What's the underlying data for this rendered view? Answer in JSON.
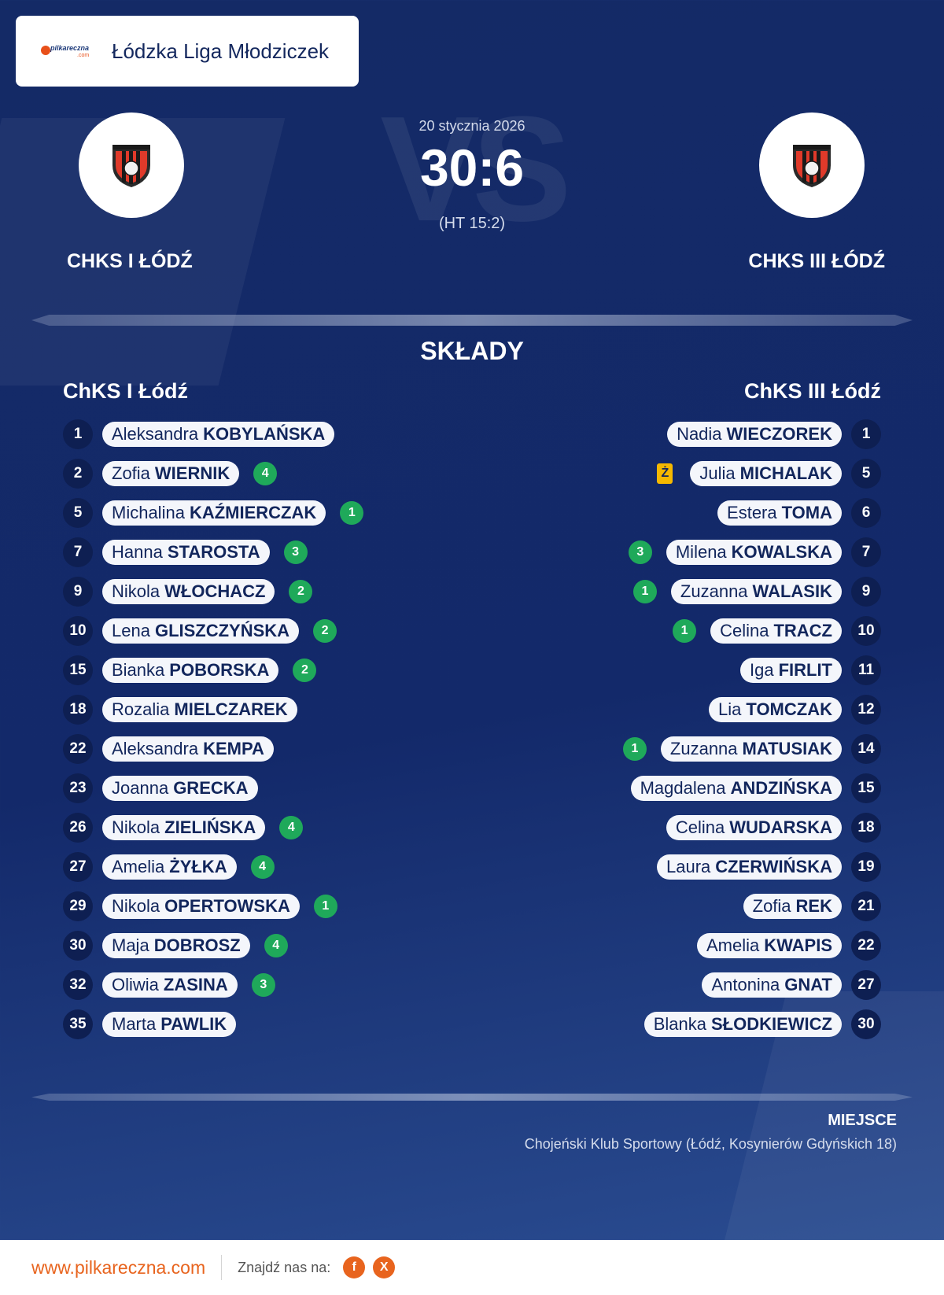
{
  "header": {
    "league": "Łódzka Liga Młodziczek",
    "logo_text": "pilkareczna",
    "logo_sub": ".com"
  },
  "match": {
    "date": "20 stycznia 2026",
    "score": "30:6",
    "halftime": "(HT 15:2)",
    "vs_text": "VS",
    "home_team": "CHKS I ŁÓDŹ",
    "away_team": "CHKS III ŁÓDŹ"
  },
  "lineups": {
    "title": "SKŁADY",
    "home_title": "ChKS I Łódź",
    "away_title": "ChKS III Łódź",
    "home": [
      {
        "number": "1",
        "first": "Aleksandra",
        "last": "KOBYLAŃSKA",
        "goals": ""
      },
      {
        "number": "2",
        "first": "Zofia",
        "last": "WIERNIK",
        "goals": "4"
      },
      {
        "number": "5",
        "first": "Michalina",
        "last": "KAŹMIERCZAK",
        "goals": "1"
      },
      {
        "number": "7",
        "first": "Hanna",
        "last": "STAROSTA",
        "goals": "3"
      },
      {
        "number": "9",
        "first": "Nikola",
        "last": "WŁOCHACZ",
        "goals": "2"
      },
      {
        "number": "10",
        "first": "Lena",
        "last": "GLISZCZYŃSKA",
        "goals": "2"
      },
      {
        "number": "15",
        "first": "Bianka",
        "last": "POBORSKA",
        "goals": "2"
      },
      {
        "number": "18",
        "first": "Rozalia",
        "last": "MIELCZAREK",
        "goals": ""
      },
      {
        "number": "22",
        "first": "Aleksandra",
        "last": "KEMPA",
        "goals": ""
      },
      {
        "number": "23",
        "first": "Joanna",
        "last": "GRECKA",
        "goals": ""
      },
      {
        "number": "26",
        "first": "Nikola",
        "last": "ZIELIŃSKA",
        "goals": "4"
      },
      {
        "number": "27",
        "first": "Amelia",
        "last": "ŻYŁKA",
        "goals": "4"
      },
      {
        "number": "29",
        "first": "Nikola",
        "last": "OPERTOWSKA",
        "goals": "1"
      },
      {
        "number": "30",
        "first": "Maja",
        "last": "DOBROSZ",
        "goals": "4"
      },
      {
        "number": "32",
        "first": "Oliwia",
        "last": "ZASINA",
        "goals": "3"
      },
      {
        "number": "35",
        "first": "Marta",
        "last": "PAWLIK",
        "goals": ""
      }
    ],
    "away": [
      {
        "number": "1",
        "first": "Nadia",
        "last": "WIECZOREK",
        "goals": "",
        "card": ""
      },
      {
        "number": "5",
        "first": "Julia",
        "last": "MICHALAK",
        "goals": "",
        "card": "Ż"
      },
      {
        "number": "6",
        "first": "Estera",
        "last": "TOMA",
        "goals": "",
        "card": ""
      },
      {
        "number": "7",
        "first": "Milena",
        "last": "KOWALSKA",
        "goals": "3",
        "card": ""
      },
      {
        "number": "9",
        "first": "Zuzanna",
        "last": "WALASIK",
        "goals": "1",
        "card": ""
      },
      {
        "number": "10",
        "first": "Celina",
        "last": "TRACZ",
        "goals": "1",
        "card": ""
      },
      {
        "number": "11",
        "first": "Iga",
        "last": "FIRLIT",
        "goals": "",
        "card": ""
      },
      {
        "number": "12",
        "first": "Lia",
        "last": "TOMCZAK",
        "goals": "",
        "card": ""
      },
      {
        "number": "14",
        "first": "Zuzanna",
        "last": "MATUSIAK",
        "goals": "1",
        "card": ""
      },
      {
        "number": "15",
        "first": "Magdalena",
        "last": "ANDZIŃSKA",
        "goals": "",
        "card": ""
      },
      {
        "number": "18",
        "first": "Celina",
        "last": "WUDARSKA",
        "goals": "",
        "card": ""
      },
      {
        "number": "19",
        "first": "Laura",
        "last": "CZERWIŃSKA",
        "goals": "",
        "card": ""
      },
      {
        "number": "21",
        "first": "Zofia",
        "last": "REK",
        "goals": "",
        "card": ""
      },
      {
        "number": "22",
        "first": "Amelia",
        "last": "KWAPIS",
        "goals": "",
        "card": ""
      },
      {
        "number": "27",
        "first": "Antonina",
        "last": "GNAT",
        "goals": "",
        "card": ""
      },
      {
        "number": "30",
        "first": "Blanka",
        "last": "SŁODKIEWICZ",
        "goals": "",
        "card": ""
      }
    ]
  },
  "venue": {
    "label": "MIEJSCE",
    "value": "Chojeński Klub Sportowy (Łódź, Kosynierów Gdyńskich 18)"
  },
  "footer": {
    "site": "www.pilkareczna.com",
    "find_us": "Znajdź nas na:",
    "facebook": "f",
    "x": "X"
  },
  "icons": {
    "crest": "club-crest-icon",
    "facebook": "facebook-icon",
    "x": "x-icon",
    "card": "yellow-card-icon"
  },
  "colors": {
    "accent": "#e8641e",
    "goal_badge": "#1fa95a",
    "yellow_card": "#f5b800",
    "navy": "#142a66"
  }
}
